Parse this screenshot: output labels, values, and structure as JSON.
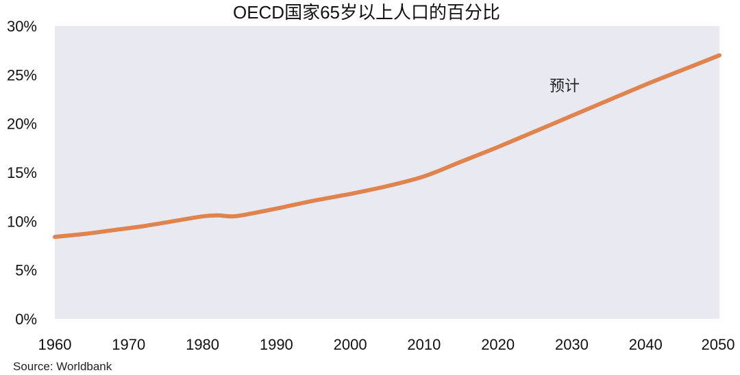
{
  "chart_data": {
    "type": "line",
    "title": "OECD国家65岁以上人口的百分比",
    "xlabel": "",
    "ylabel": "",
    "xlim": [
      1960,
      2050
    ],
    "ylim": [
      0,
      30
    ],
    "x_ticks": [
      "1960",
      "1970",
      "1980",
      "1990",
      "2000",
      "2010",
      "2020",
      "2030",
      "2040",
      "2050"
    ],
    "y_ticks": [
      "0%",
      "5%",
      "10%",
      "15%",
      "20%",
      "25%",
      "30%"
    ],
    "grid": false,
    "legend": "none",
    "plot_background": "#e9e9f2",
    "line_color": "#e0844e",
    "annotation": "预计",
    "source": "Source: Worldbank",
    "series": [
      {
        "x": [
          1960,
          1964,
          1968,
          1972,
          1976,
          1980,
          1982,
          1984,
          1986,
          1990,
          1995,
          2000,
          2005,
          2010,
          2015,
          2020,
          2025,
          2030,
          2035,
          2040,
          2045,
          2050
        ],
        "values": [
          8.4,
          8.7,
          9.1,
          9.5,
          10.0,
          10.5,
          10.6,
          10.5,
          10.7,
          11.3,
          12.1,
          12.8,
          13.6,
          14.6,
          16.1,
          17.6,
          19.2,
          20.8,
          22.4,
          24.0,
          25.5,
          27.0
        ]
      }
    ]
  }
}
